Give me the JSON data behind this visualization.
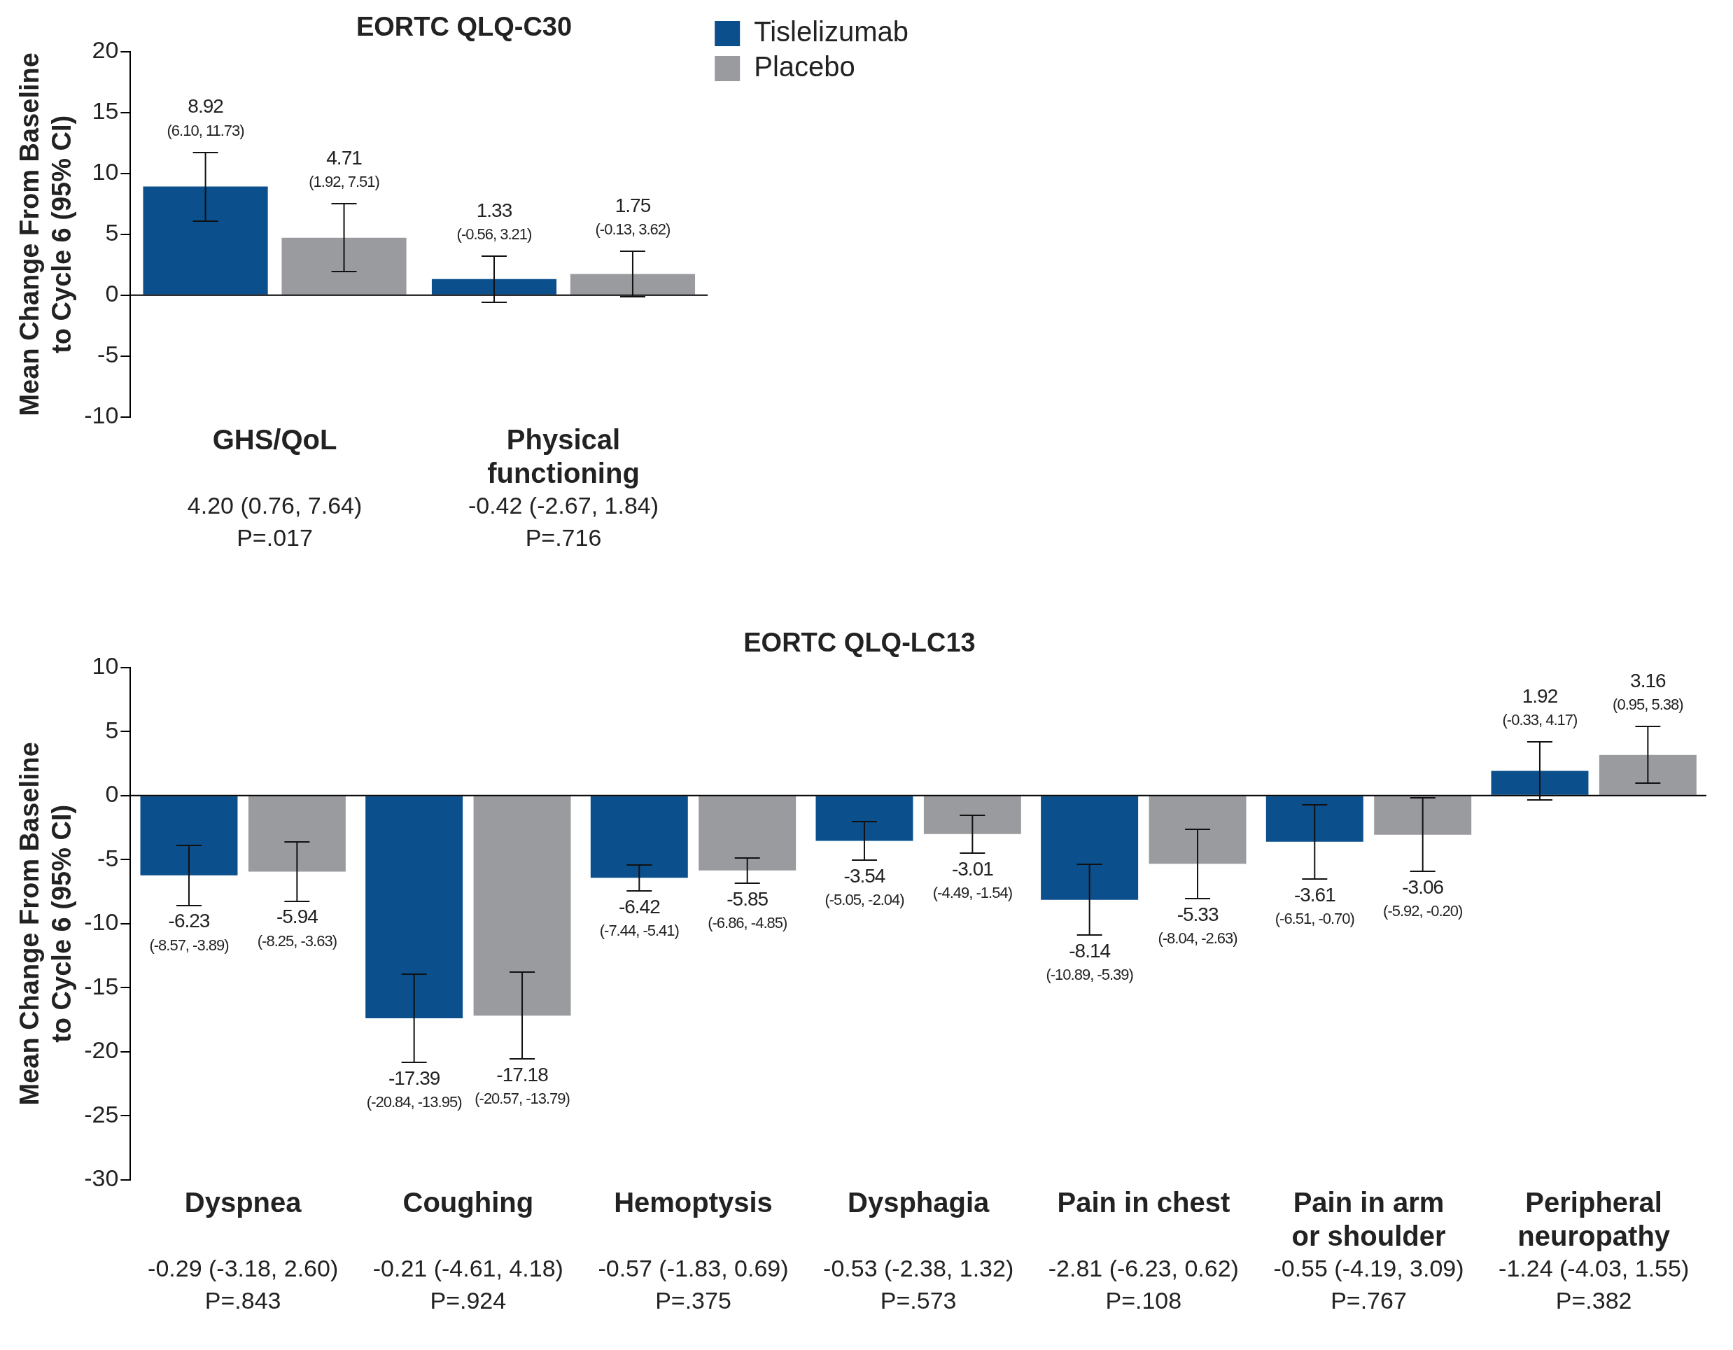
{
  "chart_data": [
    {
      "type": "bar",
      "title": "EORTC QLQ-C30",
      "ylabel": "Mean Change From Baseline\nto Cycle 6 (95% CI)",
      "categories": [
        "GHS/QoL",
        "Physical functioning"
      ],
      "series": [
        {
          "name": "Tislelizumab",
          "color": "#0b4f8c",
          "values": [
            8.92,
            1.33
          ],
          "errors": [
            [
              6.1,
              11.73
            ],
            [
              -0.56,
              3.21
            ]
          ],
          "value_labels": [
            "8.92 (6.10, 11.73)",
            "1.33 (-0.56, 3.21)"
          ]
        },
        {
          "name": "Placebo",
          "color": "#999b9e",
          "values": [
            4.71,
            1.75
          ],
          "errors": [
            [
              1.92,
              7.51
            ],
            [
              -0.13,
              3.62
            ]
          ],
          "value_labels": [
            "4.71 (1.92, 7.51)",
            "1.75 (-0.13, 3.62)"
          ]
        }
      ],
      "ylim": [
        -10,
        20
      ],
      "yticks": [
        -10,
        -5,
        0,
        5,
        10,
        15,
        20
      ],
      "legend": "right",
      "annotations": [
        "4.20 (0.76, 7.64)",
        "P=.017",
        "-0.42 (-2.67, 1.84)",
        "P=.716"
      ]
    },
    {
      "type": "bar",
      "title": "EORTC QLQ-LC13",
      "ylabel": "Mean Change From Baseline\nto Cycle 6 (95% CI)",
      "categories": [
        "Dyspnea",
        "Coughing",
        "Hemoptysis",
        "Dysphagia",
        "Pain in chest",
        "Pain in arm or shoulder",
        "Peripheral neuropathy"
      ],
      "series": [
        {
          "color": "#0b4f8c",
          "values": [
            -6.23,
            -17.39,
            -6.42,
            -3.54,
            -8.14,
            -3.61,
            1.92
          ],
          "errors": [
            [
              -8.57,
              -3.89
            ],
            [
              -20.84,
              -13.95
            ],
            [
              -7.44,
              -5.41
            ],
            [
              -5.05,
              -2.04
            ],
            [
              -10.89,
              -5.39
            ],
            [
              -6.51,
              -0.7
            ],
            [
              -0.33,
              4.17
            ]
          ],
          "value_labels": [
            "-6.23 (-8.57, -3.89)",
            "-17.39 (-20.84, -13.95)",
            "-6.42 (-7.44, -5.41)",
            "-3.54 (-5.05, -2.04)",
            "-8.14 (-10.89, -5.39)",
            "-3.61 (-6.51, -0.70)",
            "1.92 (-0.33, 4.17)"
          ]
        },
        {
          "color": "#999b9e",
          "values": [
            -5.94,
            -17.18,
            -5.85,
            -3.01,
            -5.33,
            -3.06,
            3.16
          ],
          "errors": [
            [
              -8.25,
              -3.63
            ],
            [
              -20.57,
              -13.79
            ],
            [
              -6.86,
              -4.85
            ],
            [
              -4.49,
              -1.54
            ],
            [
              -8.04,
              -2.63
            ],
            [
              -5.92,
              -0.2
            ],
            [
              0.95,
              5.38
            ]
          ],
          "value_labels": [
            "-5.94 (-8.25, -3.63)",
            "-17.18 (-20.57, -13.79)",
            "-5.85 (-6.86, -4.85)",
            "-3.01 (-4.49, -1.54)",
            "-5.33 (-8.04, -2.63)",
            "-3.06 (-5.92, -0.20)",
            "3.16 (0.95, 5.38)"
          ]
        }
      ],
      "ylim": [
        -30,
        10
      ],
      "yticks": [
        -30,
        -25,
        -20,
        -15,
        -10,
        -5,
        0,
        5,
        10
      ],
      "annotations": [
        "-0.29 (-3.18, 2.60)",
        "P=.843",
        "-0.21 (-4.61, 4.18)",
        "P=.924",
        "-0.57 (-1.83, 0.69)",
        "P=.375",
        "-0.53 (-2.38, 1.32)",
        "P=.573",
        "-2.81 (-6.23, 0.62)",
        "P=.108",
        "-0.55 (-4.19, 3.09)",
        "P=.767",
        "-1.24 (-4.03, 1.55)",
        "P=.382"
      ]
    }
  ]
}
